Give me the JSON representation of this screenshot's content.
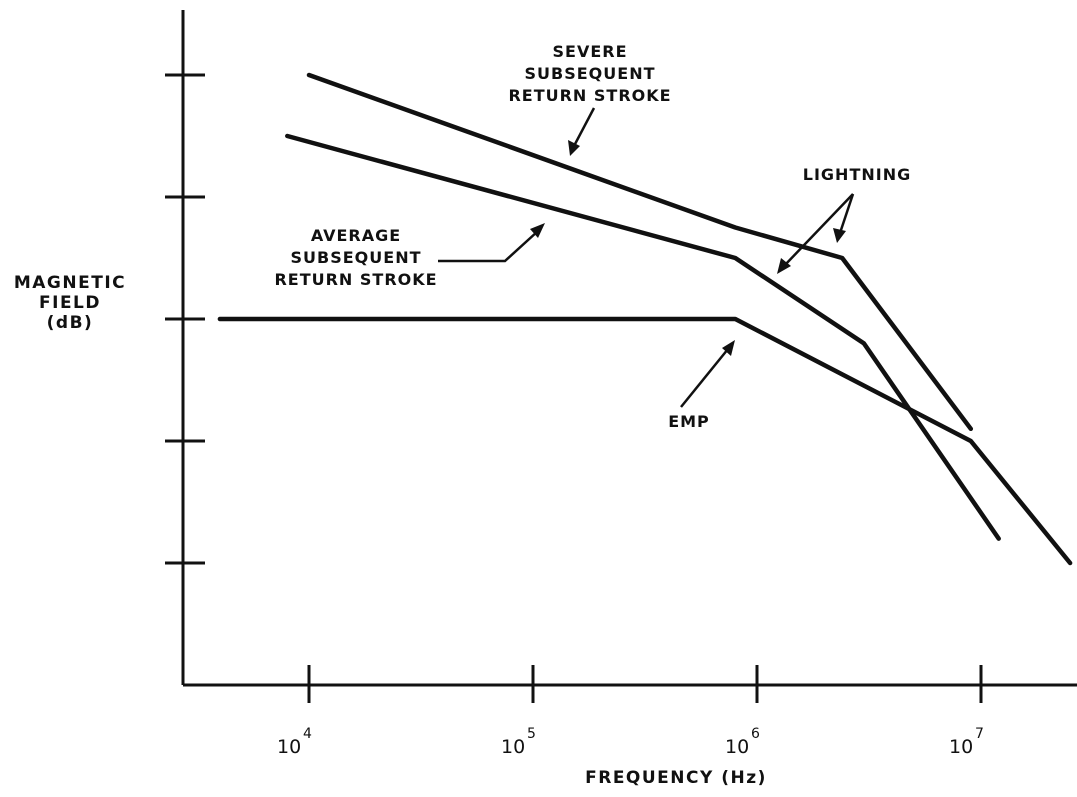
{
  "chart_data": {
    "type": "line",
    "title": "",
    "xlabel": "FREQUENCY (Hz)",
    "ylabel": [
      "MAGNETIC",
      "FIELD",
      "(dB)"
    ],
    "x_scale": "log",
    "xlim": [
      3000,
      25000000
    ],
    "ylim": [
      0,
      5
    ],
    "x_ticks": [
      {
        "value": 10000,
        "base": "10",
        "exp": "4"
      },
      {
        "value": 100000,
        "base": "10",
        "exp": "5"
      },
      {
        "value": 1000000,
        "base": "10",
        "exp": "6"
      },
      {
        "value": 10000000,
        "base": "10",
        "exp": "7"
      }
    ],
    "y_ticks": [
      1,
      2,
      3,
      4,
      5
    ],
    "grid": false,
    "legend": "none",
    "series": [
      {
        "points": [
          [
            10000,
            5.0
          ],
          [
            800000,
            3.75
          ],
          [
            2400000,
            3.5
          ],
          [
            9000000,
            2.1
          ]
        ]
      },
      {
        "points": [
          [
            8000,
            4.5
          ],
          [
            800000,
            3.5
          ],
          [
            3000000,
            2.8
          ],
          [
            12000000,
            1.2
          ]
        ]
      },
      {
        "points": [
          [
            4000,
            3.0
          ],
          [
            800000,
            3.0
          ],
          [
            9000000,
            2.0
          ],
          [
            25000000,
            1.0
          ]
        ]
      }
    ],
    "annotations": [
      {
        "lines": [
          "SEVERE",
          "SUBSEQUENT",
          "RETURN STROKE"
        ]
      },
      {
        "lines": [
          "AVERAGE",
          "SUBSEQUENT",
          "RETURN STROKE"
        ]
      },
      {
        "lines": [
          "LIGHTNING"
        ]
      },
      {
        "lines": [
          "EMP"
        ]
      }
    ]
  }
}
